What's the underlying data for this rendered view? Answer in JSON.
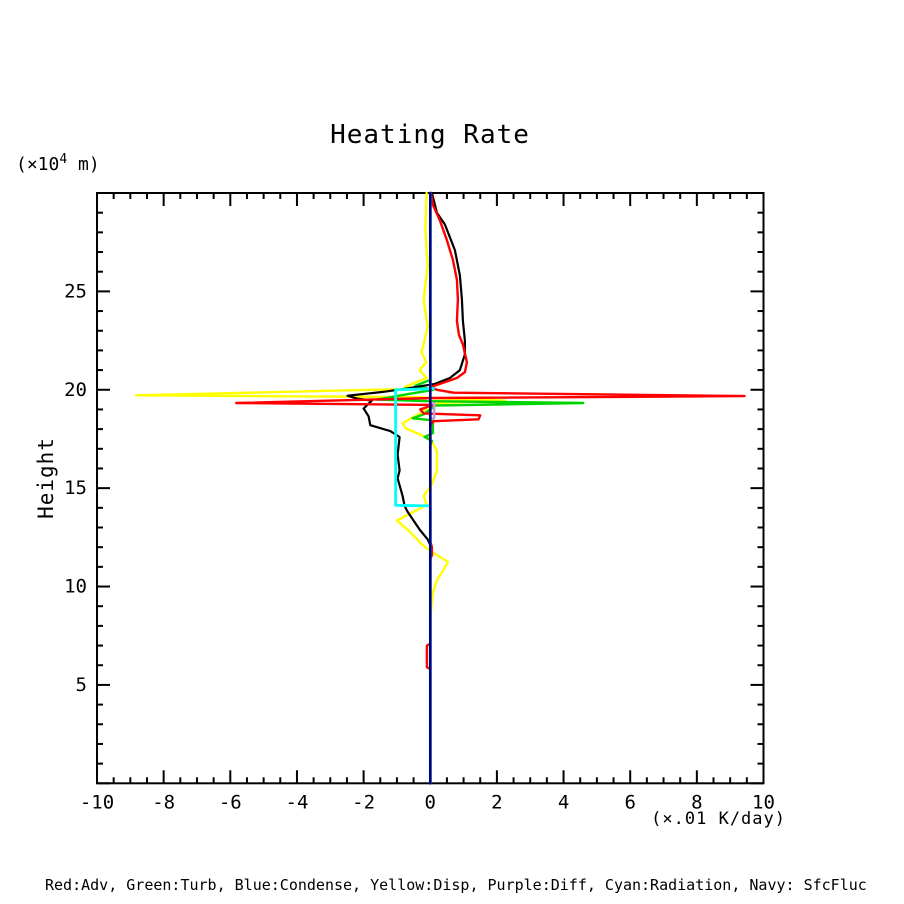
{
  "chart_data": {
    "type": "line",
    "title": "Heating Rate",
    "ylabel": "Height",
    "y_unit_prefix": "(×10",
    "y_unit_sup": "4",
    "y_unit_suffix": " m)",
    "x_unit": "(×.01 K/day)",
    "legend_text": "Red:Adv, Green:Turb, Blue:Condense, Yellow:Disp, Purple:Diff, Cyan:Radiation, Navy: SfcFluc",
    "grid": false,
    "legend_position": "bottom",
    "xaxis": {
      "range": [
        -10,
        10
      ],
      "major_step": 2,
      "minor_step": 0.5,
      "ticks": [
        {
          "v": -10,
          "label": "-10"
        },
        {
          "v": -8,
          "label": "-8"
        },
        {
          "v": -6,
          "label": "-6"
        },
        {
          "v": -4,
          "label": "-4"
        },
        {
          "v": -2,
          "label": "-2"
        },
        {
          "v": 0,
          "label": "0"
        },
        {
          "v": 2,
          "label": "2"
        },
        {
          "v": 4,
          "label": "4"
        },
        {
          "v": 6,
          "label": "6"
        },
        {
          "v": 8,
          "label": "8"
        },
        {
          "v": 10,
          "label": "10"
        }
      ]
    },
    "yaxis": {
      "range": [
        0,
        30
      ],
      "major_step": 5,
      "minor_step": 1,
      "ticks": [
        {
          "v": 5,
          "label": "5"
        },
        {
          "v": 10,
          "label": "10"
        },
        {
          "v": 15,
          "label": "15"
        },
        {
          "v": 20,
          "label": "20"
        },
        {
          "v": 25,
          "label": "25"
        }
      ]
    },
    "series": [
      {
        "name": "yellow-disp",
        "legend_label": "Disp",
        "color": "#FFFF00",
        "width": 2.4,
        "points": [
          [
            -0.11,
            30
          ],
          [
            -0.15,
            28.2
          ],
          [
            -0.08,
            26.3
          ],
          [
            -0.2,
            24.6
          ],
          [
            -0.08,
            23.2
          ],
          [
            -0.26,
            21.9
          ],
          [
            -0.12,
            21.4
          ],
          [
            -0.32,
            21.0
          ],
          [
            -0.11,
            20.6
          ],
          [
            -0.55,
            20.3
          ],
          [
            -0.75,
            20.15
          ],
          [
            -0.4,
            20.05
          ],
          [
            -8.83,
            19.72
          ],
          [
            -0.35,
            19.62
          ],
          [
            0.3,
            19.55
          ],
          [
            2.24,
            19.45
          ],
          [
            0.6,
            19.35
          ],
          [
            0.05,
            19.28
          ],
          [
            -0.2,
            18.9
          ],
          [
            -0.83,
            18.3
          ],
          [
            -0.75,
            18.05
          ],
          [
            0,
            17.5
          ],
          [
            0.2,
            16.9
          ],
          [
            0.2,
            15.9
          ],
          [
            0.05,
            15.2
          ],
          [
            -0.2,
            14.6
          ],
          [
            -0.11,
            14.15
          ],
          [
            -1.0,
            13.35
          ],
          [
            -0.62,
            12.8
          ],
          [
            -0.26,
            12.15
          ],
          [
            0.05,
            11.75
          ],
          [
            0.53,
            11.25
          ],
          [
            0.38,
            10.8
          ],
          [
            0.2,
            10.3
          ],
          [
            0.08,
            9.7
          ],
          [
            0.02,
            8.7
          ],
          [
            0,
            8.4
          ],
          [
            0,
            0
          ]
        ]
      },
      {
        "name": "green-turb",
        "legend_label": "Turb",
        "color": "#00D400",
        "width": 2.4,
        "points": [
          [
            0,
            30
          ],
          [
            0,
            20.5
          ],
          [
            -0.45,
            20.2
          ],
          [
            0.1,
            20.0
          ],
          [
            -0.6,
            19.8
          ],
          [
            -1.6,
            19.5
          ],
          [
            0,
            19.42
          ],
          [
            4.59,
            19.33
          ],
          [
            0.15,
            19.2
          ],
          [
            0.08,
            19.1
          ],
          [
            -0.2,
            18.75
          ],
          [
            -0.53,
            18.55
          ],
          [
            0.08,
            18.45
          ],
          [
            0.08,
            17.8
          ],
          [
            -0.17,
            17.6
          ],
          [
            0.05,
            17.4
          ],
          [
            0,
            17.2
          ],
          [
            0,
            0
          ]
        ]
      },
      {
        "name": "black",
        "legend_label": "",
        "color": "#000000",
        "width": 2.2,
        "points": [
          [
            0.05,
            30
          ],
          [
            0.2,
            29.0
          ],
          [
            0.44,
            28.4
          ],
          [
            0.74,
            27.1
          ],
          [
            0.89,
            25.8
          ],
          [
            0.95,
            24.6
          ],
          [
            0.98,
            23.5
          ],
          [
            1.04,
            22.5
          ],
          [
            1.04,
            21.8
          ],
          [
            0.89,
            21.0
          ],
          [
            0.59,
            20.6
          ],
          [
            0.14,
            20.3
          ],
          [
            -0.77,
            20.05
          ],
          [
            -1.37,
            19.9
          ],
          [
            -2.48,
            19.7
          ],
          [
            -2.2,
            19.55
          ],
          [
            -1.75,
            19.45
          ],
          [
            -2.0,
            19.05
          ],
          [
            -1.85,
            18.65
          ],
          [
            -1.8,
            18.2
          ],
          [
            -1.2,
            17.9
          ],
          [
            -0.92,
            17.6
          ],
          [
            -0.98,
            16.7
          ],
          [
            -0.92,
            15.9
          ],
          [
            -0.98,
            15.5
          ],
          [
            -0.83,
            14.6
          ],
          [
            -0.77,
            14.1
          ],
          [
            -0.68,
            13.8
          ],
          [
            -0.32,
            12.9
          ],
          [
            -0.08,
            12.4
          ],
          [
            0,
            12.1
          ],
          [
            0,
            0
          ]
        ]
      },
      {
        "name": "red-adv",
        "legend_label": "Adv",
        "color": "#FF0000",
        "width": 2.4,
        "points": [
          [
            0.02,
            30
          ],
          [
            0.08,
            29.4
          ],
          [
            0.29,
            28.6
          ],
          [
            0.5,
            27.6
          ],
          [
            0.68,
            26.6
          ],
          [
            0.8,
            25.6
          ],
          [
            0.83,
            24.6
          ],
          [
            0.8,
            23.5
          ],
          [
            0.86,
            22.8
          ],
          [
            0.98,
            22.3
          ],
          [
            1.1,
            21.4
          ],
          [
            1.04,
            20.9
          ],
          [
            0.8,
            20.6
          ],
          [
            0.29,
            20.3
          ],
          [
            0.02,
            20.15
          ],
          [
            0.2,
            20.0
          ],
          [
            0.7,
            19.85
          ],
          [
            9.43,
            19.68
          ],
          [
            0.1,
            19.58
          ],
          [
            -5.82,
            19.33
          ],
          [
            0.1,
            19.23
          ],
          [
            -0.3,
            19.0
          ],
          [
            -0.2,
            18.8
          ],
          [
            1.5,
            18.7
          ],
          [
            1.45,
            18.5
          ],
          [
            0.1,
            18.4
          ],
          [
            0,
            18.2
          ],
          [
            0,
            12.3
          ],
          [
            0.05,
            12.0
          ],
          [
            0.05,
            11.6
          ],
          [
            0,
            11.4
          ],
          [
            0,
            7.1
          ],
          [
            -0.1,
            7.0
          ],
          [
            -0.1,
            5.9
          ],
          [
            0,
            5.8
          ],
          [
            0,
            0
          ]
        ]
      },
      {
        "name": "cyan-radiation",
        "legend_label": "Radiation",
        "color": "#00FFFF",
        "width": 2.8,
        "points": [
          [
            0,
            30
          ],
          [
            0,
            20.1
          ],
          [
            0.1,
            20.06
          ],
          [
            -1.04,
            20.0
          ],
          [
            -1.04,
            14.13
          ],
          [
            0,
            14.1
          ],
          [
            0,
            0
          ]
        ]
      },
      {
        "name": "purple-diff",
        "legend_label": "Diff",
        "color": "#C0A0E0",
        "width": 2.6,
        "points": [
          [
            0,
            30
          ],
          [
            0,
            19.35
          ],
          [
            0.12,
            19.3
          ],
          [
            0.12,
            18.55
          ],
          [
            0,
            18.5
          ],
          [
            0,
            0
          ]
        ]
      },
      {
        "name": "blue-condense",
        "legend_label": "Condense",
        "color": "#0000FF",
        "width": 2.2,
        "points": [
          [
            0,
            30
          ],
          [
            0,
            0
          ]
        ]
      },
      {
        "name": "navy-sfcfluc",
        "legend_label": "SfcFluc",
        "color": "#000080",
        "width": 2.6,
        "points": [
          [
            0,
            30
          ],
          [
            0,
            0
          ]
        ]
      }
    ]
  },
  "colors": {
    "background": "#FFFFFF",
    "frame": "#000000",
    "text": "#000000"
  }
}
